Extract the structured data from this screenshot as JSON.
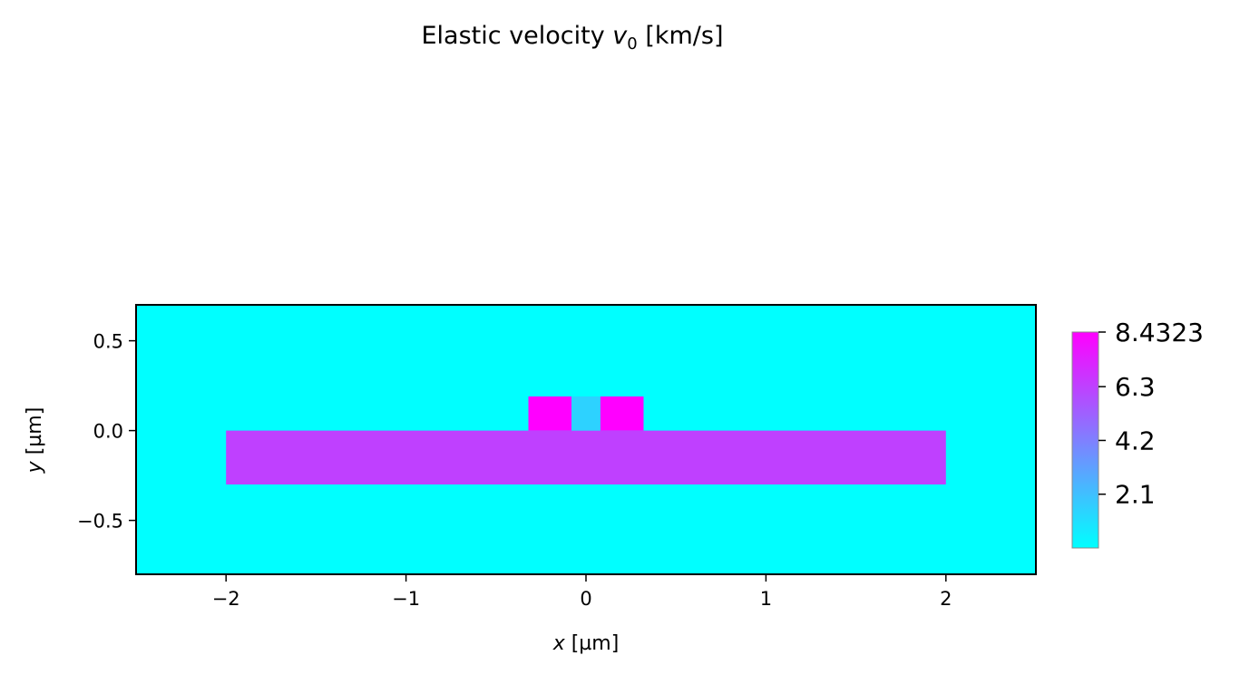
{
  "chart_data": {
    "type": "heatmap",
    "title": {
      "prefix": "Elastic velocity ",
      "symbol": "v",
      "subscript": "0",
      "suffix": " [km/s]"
    },
    "xlabel": {
      "symbol": "x",
      "unit": " [µm]"
    },
    "ylabel": {
      "symbol": "y",
      "unit": " [µm]"
    },
    "xlim": [
      -2.5,
      2.5
    ],
    "ylim": [
      -0.8,
      0.7
    ],
    "xticks": [
      {
        "value": -2,
        "label": "−2"
      },
      {
        "value": -1,
        "label": "−1"
      },
      {
        "value": 0,
        "label": "0"
      },
      {
        "value": 1,
        "label": "1"
      },
      {
        "value": 2,
        "label": "2"
      }
    ],
    "yticks": [
      {
        "value": 0.5,
        "label": "0.5"
      },
      {
        "value": 0.0,
        "label": "0.0"
      },
      {
        "value": -0.5,
        "label": "−0.5"
      }
    ],
    "background_value": 0,
    "regions": [
      {
        "name": "slab",
        "x": [
          -2.0,
          2.0
        ],
        "y": [
          -0.3,
          0.0
        ],
        "value": 6.3
      },
      {
        "name": "left-rib",
        "x": [
          -0.32,
          -0.08
        ],
        "y": [
          0.0,
          0.19
        ],
        "value": 8.4323
      },
      {
        "name": "center-gap",
        "x": [
          -0.08,
          0.08
        ],
        "y": [
          0.0,
          0.19
        ],
        "value": 1.5
      },
      {
        "name": "right-rib",
        "x": [
          0.08,
          0.32
        ],
        "y": [
          0.0,
          0.19
        ],
        "value": 8.4323
      }
    ],
    "colorbar": {
      "min": 0,
      "max": 8.4323,
      "colormap": "cool",
      "colormap_start": "#00ffff",
      "colormap_end": "#ff00ff",
      "ticks": [
        {
          "value": 8.4323,
          "label": "8.4323"
        },
        {
          "value": 6.3,
          "label": "6.3"
        },
        {
          "value": 4.2,
          "label": "4.2"
        },
        {
          "value": 2.1,
          "label": "2.1"
        }
      ]
    },
    "grid": false
  }
}
